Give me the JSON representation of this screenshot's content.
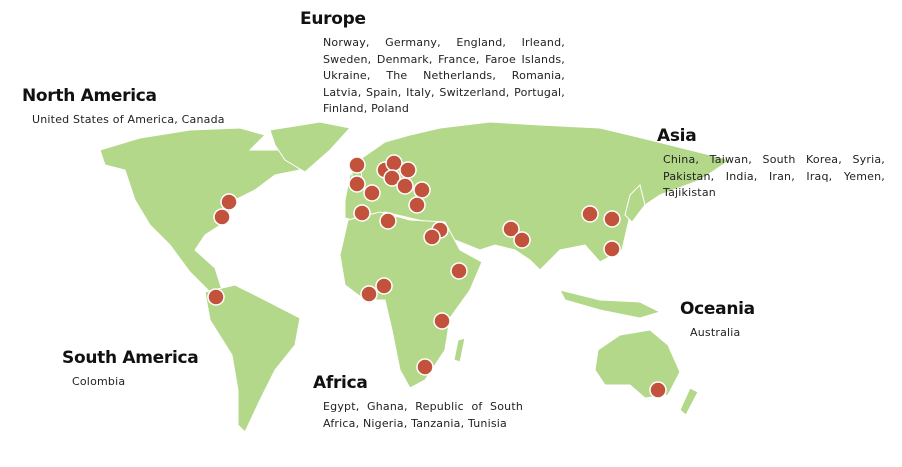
{
  "regions": [
    {
      "name": "North America",
      "countries": "United States of America, Canada"
    },
    {
      "name": "Europe",
      "countries": "Norway, Germany, England, Irleand, Sweden, Denmark, France, Faroe Islands, Ukraine, The Netherlands, Romania, Latvia, Spain, Italy, Switzerland, Portugal, Finland, Poland"
    },
    {
      "name": "Asia",
      "countries": "China, Taiwan, South Korea, Syria, Pakistan, India, Iran, Iraq, Yemen, Tajikistan"
    },
    {
      "name": "Oceania",
      "countries": "Australia"
    },
    {
      "name": "South America",
      "countries": "Colombia"
    },
    {
      "name": "Africa",
      "countries": "Egypt, Ghana, Republic of South Africa, Nigeria, Tanzania, Tunisia"
    }
  ]
}
